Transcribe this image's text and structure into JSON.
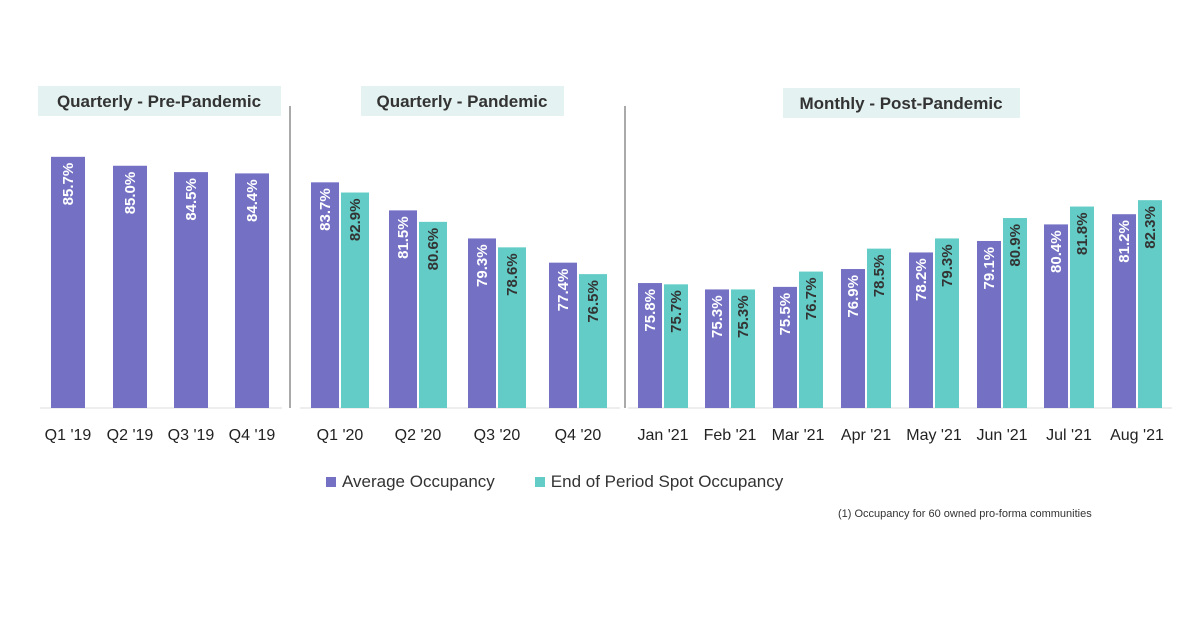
{
  "colors": {
    "average": "#7471c4",
    "spot": "#63ccc6",
    "title_bg": "#e4f3f1",
    "divider": "#555555",
    "baseline": "#dddddd"
  },
  "legend": {
    "average_label": "Average Occupancy",
    "spot_label": "End of Period Spot Occupancy"
  },
  "footnote": "(1)   Occupancy for 60 owned pro-forma communities",
  "chart_data": [
    {
      "type": "bar",
      "title": "Quarterly - Pre-Pandemic",
      "categories": [
        "Q1 '19",
        "Q2 '19",
        "Q3 '19",
        "Q4 '19"
      ],
      "series": [
        {
          "name": "Average Occupancy",
          "values": [
            85.7,
            85.0,
            84.5,
            84.4
          ],
          "labels": [
            "85.7%",
            "85.0%",
            "84.5%",
            "84.4%"
          ]
        }
      ]
    },
    {
      "type": "bar",
      "title": "Quarterly - Pandemic",
      "categories": [
        "Q1 '20",
        "Q2 '20",
        "Q3 '20",
        "Q4 '20"
      ],
      "series": [
        {
          "name": "Average Occupancy",
          "values": [
            83.7,
            81.5,
            79.3,
            77.4
          ],
          "labels": [
            "83.7%",
            "81.5%",
            "79.3%",
            "77.4%"
          ]
        },
        {
          "name": "End of Period Spot Occupancy",
          "values": [
            82.9,
            80.6,
            78.6,
            76.5
          ],
          "labels": [
            "82.9%",
            "80.6%",
            "78.6%",
            "76.5%"
          ]
        }
      ]
    },
    {
      "type": "bar",
      "title": "Monthly - Post-Pandemic",
      "categories": [
        "Jan '21",
        "Feb '21",
        "Mar '21",
        "Apr '21",
        "May '21",
        "Jun '21",
        "Jul '21",
        "Aug '21"
      ],
      "series": [
        {
          "name": "Average Occupancy",
          "values": [
            75.8,
            75.3,
            75.5,
            76.9,
            78.2,
            79.1,
            80.4,
            81.2
          ],
          "labels": [
            "75.8%",
            "75.3%",
            "75.5%",
            "76.9%",
            "78.2%",
            "79.1%",
            "80.4%",
            "81.2%"
          ]
        },
        {
          "name": "End of Period Spot Occupancy",
          "values": [
            75.7,
            75.3,
            76.7,
            78.5,
            79.3,
            80.9,
            81.8,
            82.3
          ],
          "labels": [
            "75.7%",
            "75.3%",
            "76.7%",
            "78.5%",
            "79.3%",
            "80.9%",
            "81.8%",
            "82.3%"
          ]
        }
      ]
    }
  ]
}
